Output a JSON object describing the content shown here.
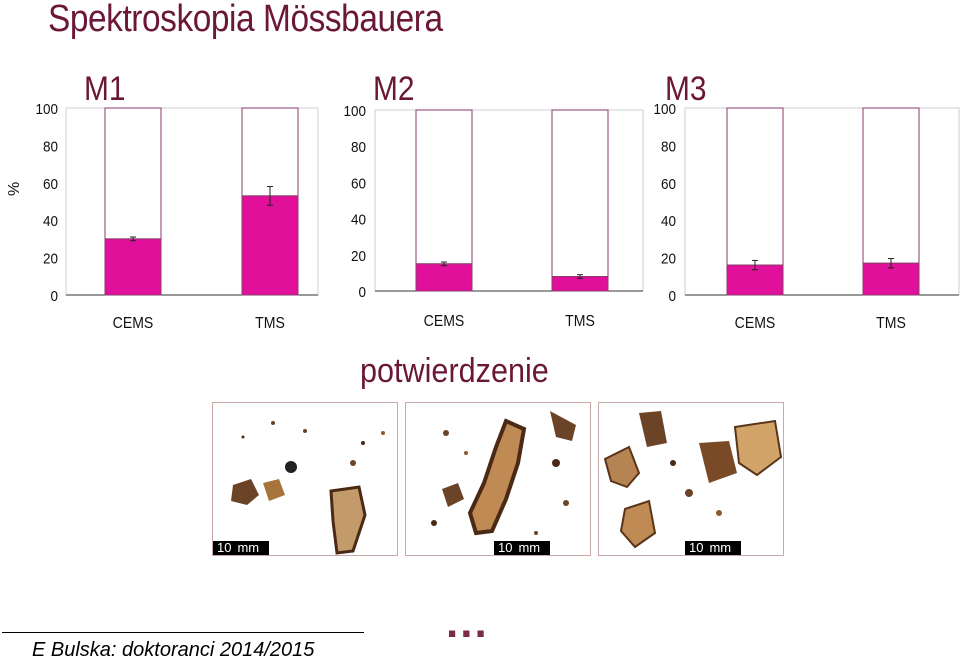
{
  "page_title": "Spektroskopia Mössbauera",
  "y_axis_label": "%",
  "chart_data": [
    {
      "type": "bar",
      "title": "M1",
      "categories": [
        "CEMS",
        "TMS"
      ],
      "values": [
        30,
        53
      ],
      "errors": [
        1,
        5
      ],
      "ylim": [
        0,
        100
      ],
      "yticks": [
        0,
        20,
        40,
        60,
        80,
        100
      ]
    },
    {
      "type": "bar",
      "title": "M2",
      "categories": [
        "CEMS",
        "TMS"
      ],
      "values": [
        15,
        8
      ],
      "errors": [
        1,
        1
      ],
      "ylim": [
        0,
        100
      ],
      "yticks": [
        0,
        20,
        40,
        60,
        80,
        100
      ]
    },
    {
      "type": "bar",
      "title": "M3",
      "categories": [
        "CEMS",
        "TMS"
      ],
      "values": [
        16,
        17
      ],
      "errors": [
        2.5,
        2.5
      ],
      "ylim": [
        0,
        100
      ],
      "yticks": [
        0,
        20,
        40,
        60,
        80,
        100
      ]
    }
  ],
  "overlay_text": "potwierdzenie",
  "photos": [
    {
      "scale_label": "10",
      "scale_unit": "mm"
    },
    {
      "scale_label": "10",
      "scale_unit": "mm"
    },
    {
      "scale_label": "10",
      "scale_unit": "mm"
    }
  ],
  "ellipsis": "...",
  "footer": "E Bulska: doktoranci 2014/2015",
  "colors": {
    "bar": "#e0109a",
    "outline": "#8b3a6b",
    "title": "#6b1738"
  }
}
